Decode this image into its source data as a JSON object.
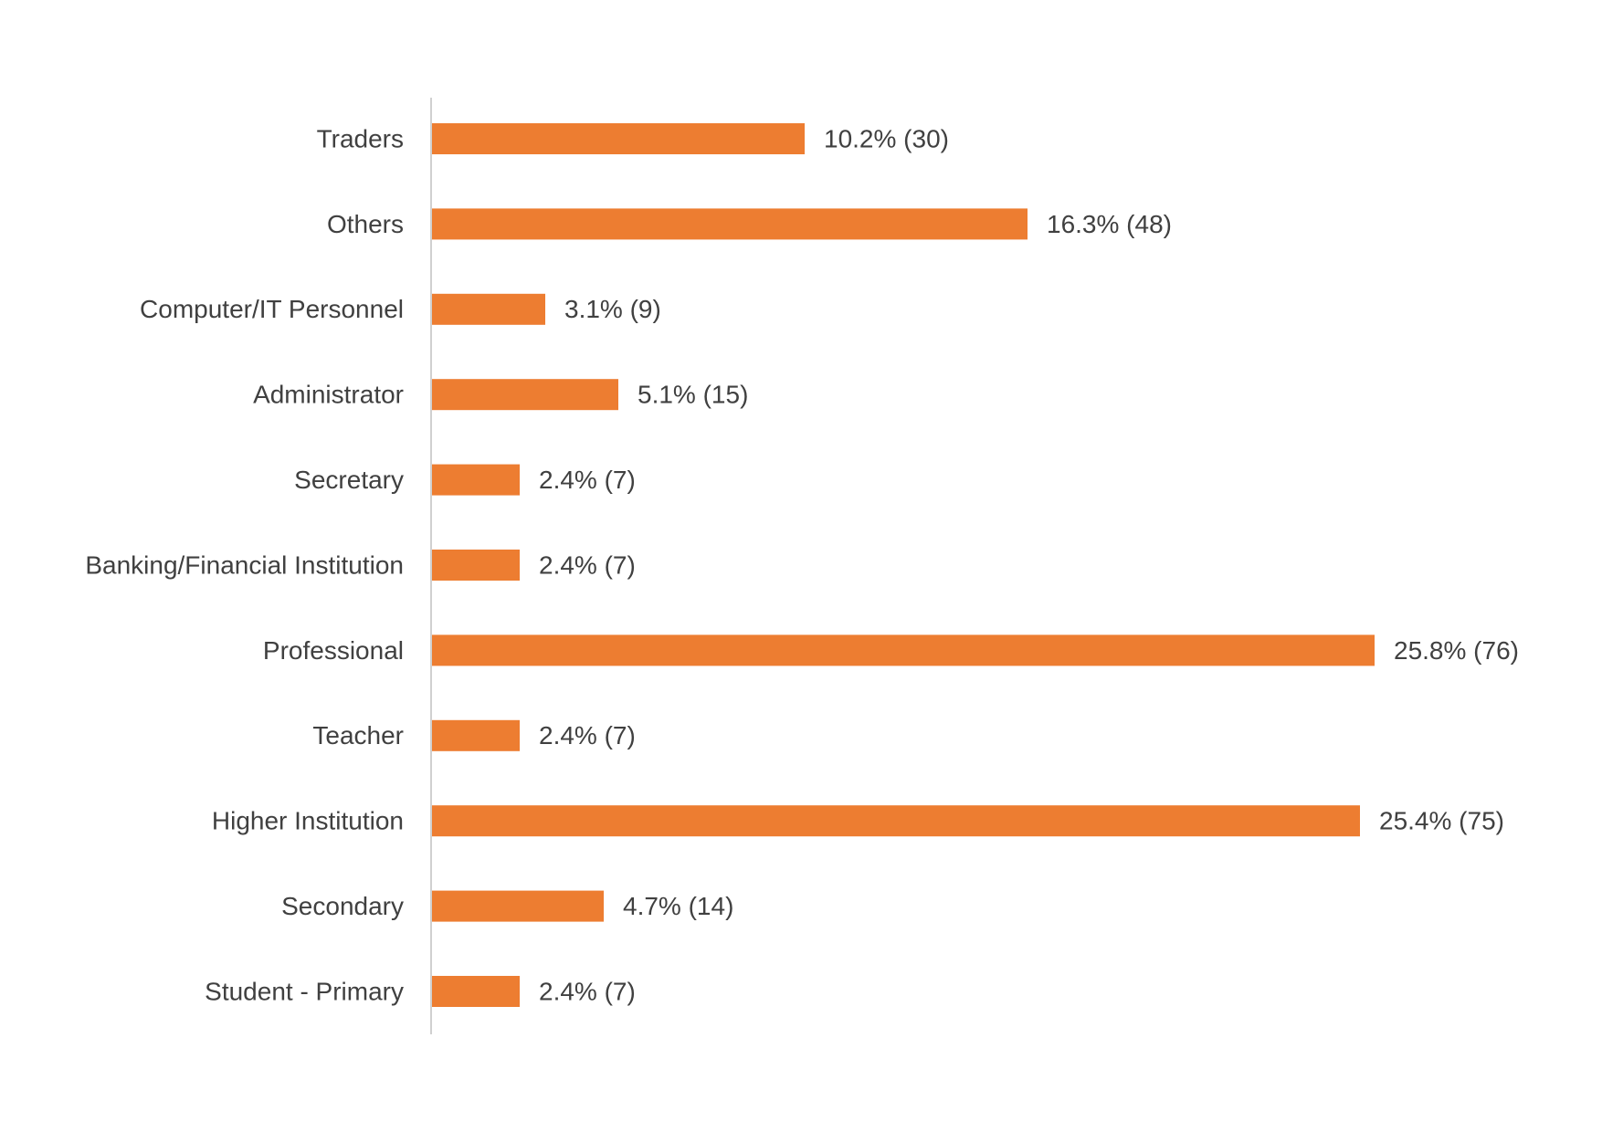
{
  "chart_data": {
    "type": "bar",
    "orientation": "horizontal",
    "categories": [
      "Traders",
      "Others",
      "Computer/IT Personnel",
      "Administrator",
      "Secretary",
      "Banking/Financial Institution",
      "Professional",
      "Teacher",
      "Higher Institution",
      "Secondary",
      "Student - Primary"
    ],
    "values": [
      10.2,
      16.3,
      3.1,
      5.1,
      2.4,
      2.4,
      25.8,
      2.4,
      25.4,
      4.7,
      2.4
    ],
    "value_labels": [
      "10.2% (30)",
      "16.3% (48)",
      "3.1% (9)",
      "5.1% (15)",
      "2.4% (7)",
      "2.4% (7)",
      "25.8% (76)",
      "2.4% (7)",
      "25.4% (75)",
      "4.7% (14)",
      "2.4% (7)"
    ],
    "color": "#ED7D31"
  }
}
